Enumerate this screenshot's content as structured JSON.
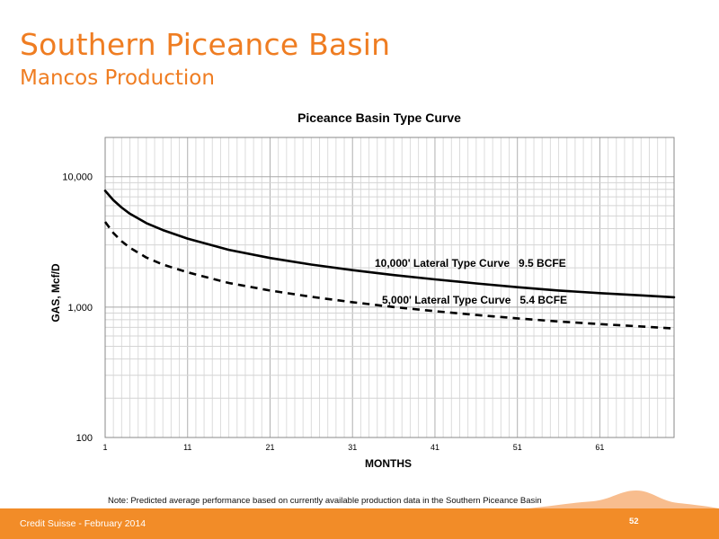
{
  "slide": {
    "title": "Southern Piceance Basin",
    "subtitle": "Mancos Production",
    "note": "Note: Predicted average performance based on currently available production data in the Southern Piceance Basin",
    "footer_left": "Credit Suisse - February 2014",
    "page_number": "52",
    "accent_color": "#ef7d22",
    "footer_color": "#f28c28"
  },
  "chart_data": {
    "type": "line",
    "title": "Piceance Basin Type Curve",
    "xlabel": "MONTHS",
    "ylabel": "GAS, Mcf/D",
    "y_scale": "log",
    "ylim": [
      100,
      20000
    ],
    "xlim": [
      1,
      70
    ],
    "x_ticks": [
      1,
      11,
      21,
      31,
      41,
      51,
      61
    ],
    "x_tick_labels": [
      "1",
      "11",
      "21",
      "31",
      "41",
      "51",
      "61"
    ],
    "y_ticks": [
      100,
      1000,
      10000
    ],
    "y_tick_labels": [
      "100",
      "1,000",
      "10,000"
    ],
    "grid": true,
    "series": [
      {
        "name": "10,000' Lateral Type Curve   9.5 BCFE",
        "style": "solid",
        "color": "#000000",
        "x": [
          1,
          2,
          3,
          4,
          6,
          8,
          11,
          16,
          21,
          26,
          31,
          36,
          41,
          46,
          51,
          56,
          61,
          66,
          70
        ],
        "values": [
          7800,
          6600,
          5800,
          5200,
          4400,
          3900,
          3350,
          2750,
          2380,
          2120,
          1920,
          1760,
          1630,
          1520,
          1420,
          1340,
          1280,
          1230,
          1190
        ]
      },
      {
        "name": "5,000' Lateral Type Curve   5.4 BCFE",
        "style": "dashed",
        "color": "#000000",
        "x": [
          1,
          2,
          3,
          4,
          6,
          8,
          11,
          16,
          21,
          26,
          31,
          36,
          41,
          46,
          51,
          56,
          61,
          66,
          70
        ],
        "values": [
          4500,
          3700,
          3200,
          2850,
          2400,
          2120,
          1850,
          1530,
          1340,
          1200,
          1090,
          1000,
          930,
          870,
          820,
          775,
          740,
          710,
          685
        ]
      }
    ]
  }
}
